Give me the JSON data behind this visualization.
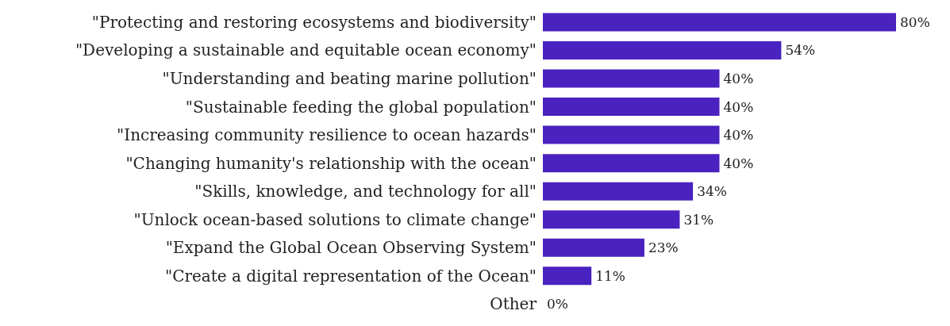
{
  "chart_data": {
    "type": "bar",
    "orientation": "horizontal",
    "categories": [
      "\"Protecting and restoring ecosystems and biodiversity\"",
      "\"Developing a sustainable and equitable ocean economy\"",
      "\"Understanding and beating marine pollution\"",
      "\"Sustainable feeding the global population\"",
      "\"Increasing community resilience to ocean hazards\"",
      "\"Changing humanity's relationship with the ocean\"",
      "\"Skills, knowledge, and technology for all\"",
      "\"Unlock ocean-based solutions to climate change\"",
      "\"Expand the Global Ocean Observing System\"",
      "\"Create a digital representation of the Ocean\"",
      "Other"
    ],
    "values": [
      80,
      54,
      40,
      40,
      40,
      40,
      34,
      31,
      23,
      11,
      0
    ],
    "value_labels": [
      "80%",
      "54%",
      "40%",
      "40%",
      "40%",
      "40%",
      "34%",
      "31%",
      "23%",
      "11%",
      "0%"
    ],
    "color": "#4a22bf",
    "grid": false,
    "legend": false
  }
}
